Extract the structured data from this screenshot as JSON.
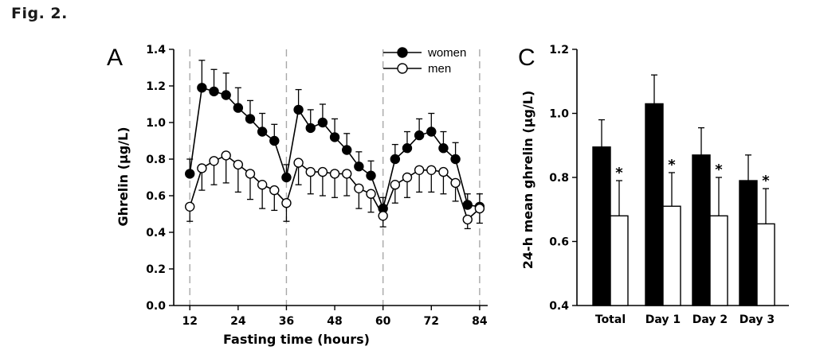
{
  "figure": {
    "label": "Fig. 2."
  },
  "chart_data": [
    {
      "panel": "A",
      "type": "line",
      "title": "",
      "xlabel": "Fasting time (hours)",
      "ylabel": "Ghrelin (µg/L)",
      "xlim": [
        8,
        86
      ],
      "ylim": [
        0,
        1.4
      ],
      "xticks": [
        12,
        24,
        36,
        48,
        60,
        72,
        84
      ],
      "yticks": [
        "0.0",
        "0.2",
        "0.4",
        "0.6",
        "0.8",
        "1.0",
        "1.2",
        "1.4"
      ],
      "vlines": [
        12,
        36,
        60,
        84
      ],
      "grid": false,
      "legend": "top-right",
      "series": [
        {
          "name": "women",
          "marker": "filled-circle",
          "x": [
            12,
            15,
            18,
            21,
            24,
            27,
            30,
            33,
            36,
            39,
            42,
            45,
            48,
            51,
            54,
            57,
            60,
            63,
            66,
            69,
            72,
            75,
            78,
            81,
            84
          ],
          "y": [
            0.72,
            1.19,
            1.17,
            1.15,
            1.08,
            1.02,
            0.95,
            0.9,
            0.7,
            1.07,
            0.97,
            1.0,
            0.92,
            0.85,
            0.76,
            0.71,
            0.53,
            0.8,
            0.86,
            0.93,
            0.95,
            0.86,
            0.8,
            0.55,
            0.54
          ],
          "err": [
            0.08,
            0.15,
            0.12,
            0.12,
            0.11,
            0.1,
            0.1,
            0.09,
            0.07,
            0.11,
            0.1,
            0.1,
            0.1,
            0.09,
            0.08,
            0.08,
            0.06,
            0.08,
            0.09,
            0.09,
            0.1,
            0.09,
            0.09,
            0.06,
            0.07
          ]
        },
        {
          "name": "men",
          "marker": "open-circle",
          "x": [
            12,
            15,
            18,
            21,
            24,
            27,
            30,
            33,
            36,
            39,
            42,
            45,
            48,
            51,
            54,
            57,
            60,
            63,
            66,
            69,
            72,
            75,
            78,
            81,
            84
          ],
          "y": [
            0.54,
            0.75,
            0.79,
            0.82,
            0.77,
            0.72,
            0.66,
            0.63,
            0.56,
            0.78,
            0.73,
            0.73,
            0.72,
            0.72,
            0.64,
            0.61,
            0.49,
            0.66,
            0.7,
            0.74,
            0.74,
            0.73,
            0.67,
            0.47,
            0.53
          ],
          "err": [
            0.08,
            0.12,
            0.13,
            0.15,
            0.15,
            0.14,
            0.13,
            0.11,
            0.1,
            0.12,
            0.12,
            0.13,
            0.13,
            0.12,
            0.11,
            0.1,
            0.06,
            0.1,
            0.11,
            0.12,
            0.12,
            0.12,
            0.1,
            0.05,
            0.08
          ]
        }
      ]
    },
    {
      "panel": "C",
      "type": "bar",
      "title": "",
      "xlabel": "",
      "ylabel": "24-h mean ghrelin (µg/L)",
      "ylim": [
        0.4,
        1.2
      ],
      "yticks": [
        "0.4",
        "0.6",
        "0.8",
        "1.0",
        "1.2"
      ],
      "categories": [
        "Total",
        "Day 1",
        "Day 2",
        "Day 3"
      ],
      "series": [
        {
          "name": "women",
          "color": "#000000",
          "values": [
            0.895,
            1.03,
            0.87,
            0.79
          ],
          "err": [
            0.085,
            0.09,
            0.085,
            0.08
          ]
        },
        {
          "name": "men",
          "color": "#ffffff",
          "values": [
            0.68,
            0.71,
            0.68,
            0.655
          ],
          "err": [
            0.11,
            0.105,
            0.12,
            0.11
          ]
        }
      ],
      "annotations": [
        "*",
        "*",
        "*",
        "*"
      ]
    }
  ]
}
